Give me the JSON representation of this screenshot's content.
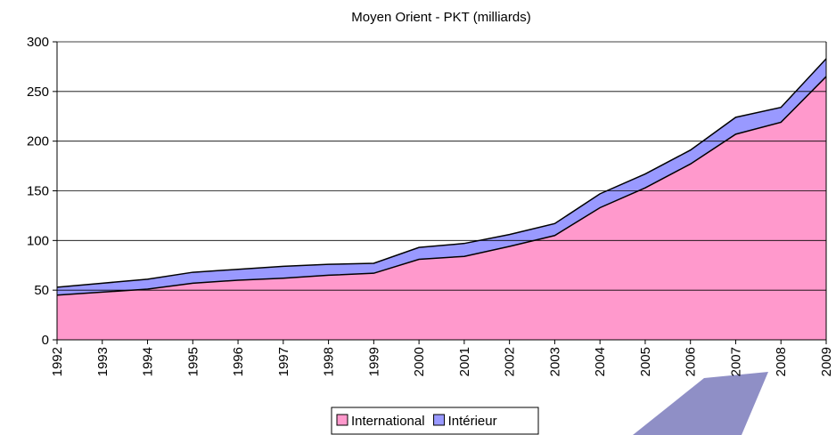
{
  "chart_data": {
    "type": "stacked_area",
    "title": "Moyen Orient - PKT (milliards)",
    "categories": [
      "1992",
      "1993",
      "1994",
      "1995",
      "1996",
      "1997",
      "1998",
      "1999",
      "2000",
      "2001",
      "2002",
      "2003",
      "2004",
      "2005",
      "2006",
      "2007",
      "2008",
      "2009"
    ],
    "series": [
      {
        "name": "International",
        "color": "#ff99cc",
        "values": [
          45,
          48,
          51,
          57,
          60,
          62,
          65,
          67,
          81,
          84,
          94,
          105,
          133,
          153,
          177,
          207,
          219,
          265
        ]
      },
      {
        "name": "Intérieur",
        "color": "#9999ff",
        "values": [
          8,
          9,
          10,
          11,
          11,
          12,
          11,
          10,
          12,
          13,
          12,
          12,
          14,
          14,
          14,
          17,
          15,
          18
        ]
      }
    ],
    "ylim": [
      0,
      300
    ],
    "yticks": [
      0,
      50,
      100,
      150,
      200,
      250,
      300
    ],
    "grid": true,
    "legend": "bottom"
  }
}
